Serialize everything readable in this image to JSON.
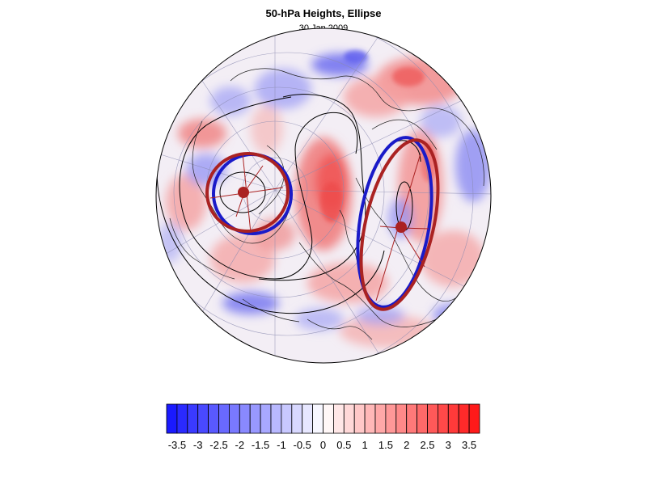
{
  "title": "50-hPa Heights, Ellipse",
  "subtitle": "30 Jan 2009",
  "colorbar": {
    "labels": [
      "-3.5",
      "-3",
      "-2.5",
      "-2",
      "-1.5",
      "-1",
      "-0.5",
      "0",
      "0.5",
      "1",
      "1.5",
      "2",
      "2.5",
      "3",
      "3.5"
    ],
    "levels": [
      -3.75,
      -3.5,
      -3.25,
      -3,
      -2.75,
      -2.5,
      -2.25,
      -2,
      -1.75,
      -1.5,
      -1.25,
      -1,
      -0.75,
      -0.5,
      -0.25,
      0,
      0.25,
      0.5,
      0.75,
      1,
      1.25,
      1.5,
      1.75,
      2,
      2.25,
      2.5,
      2.75,
      3,
      3.25,
      3.5,
      3.75
    ],
    "negative_color": "#1a1aff",
    "positive_color": "#ff1a1a"
  },
  "ellipses": [
    {
      "name": "left",
      "fit_color": "#aa2222",
      "obs_color": "#1a1ac8"
    },
    {
      "name": "right",
      "fit_color": "#aa2222",
      "obs_color": "#1a1ac8"
    }
  ]
}
